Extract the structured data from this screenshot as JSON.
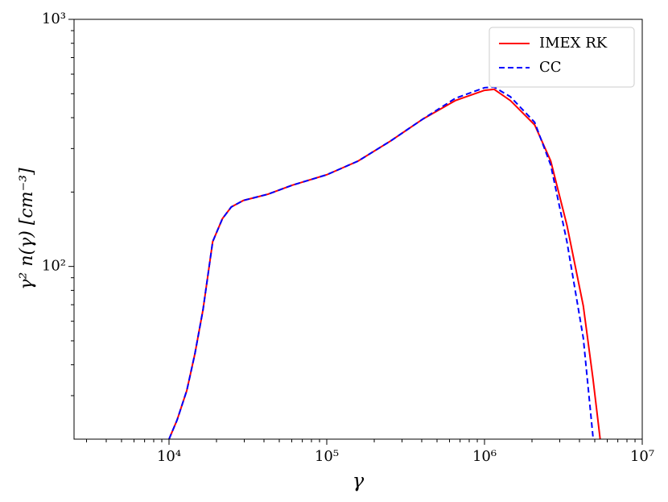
{
  "chart_data": {
    "type": "line",
    "xlabel": "γ",
    "ylabel": "γ² n(γ) [cm⁻³]",
    "xscale": "log",
    "yscale": "log",
    "xlim": [
      2500,
      10000000
    ],
    "ylim": [
      20,
      1000
    ],
    "xticks": [
      {
        "value": 10000,
        "label": "10⁴"
      },
      {
        "value": 100000,
        "label": "10⁵"
      },
      {
        "value": 1000000,
        "label": "10⁶"
      },
      {
        "value": 10000000,
        "label": "10⁷"
      }
    ],
    "yticks": [
      {
        "value": 100,
        "label": "10²"
      },
      {
        "value": 1000,
        "label": "10³"
      }
    ],
    "legend": "upper right",
    "x": [
      10000,
      11250,
      12970,
      14580,
      16420,
      18920,
      21800,
      24800,
      29650,
      42300,
      60200,
      100000,
      158000,
      254000,
      407000,
      653000,
      1000000,
      1150000,
      1460000,
      2080000,
      2630000,
      3330000,
      4230000,
      4870000,
      5410000
    ],
    "series": [
      {
        "name": "IMEX RK",
        "color": "#ff0000",
        "linestyle": "solid",
        "values": [
          20,
          23.9,
          31.5,
          44.2,
          66.7,
          126,
          156,
          174,
          185,
          196,
          213,
          235,
          267,
          322,
          395,
          469,
          516,
          521,
          469,
          374,
          267,
          147,
          69.2,
          35.2,
          20
        ]
      },
      {
        "name": "CC",
        "color": "#0000ff",
        "linestyle": "dashed",
        "values": [
          20,
          23.9,
          31.5,
          44.2,
          66.7,
          126,
          156,
          174,
          185,
          196,
          213,
          235,
          267,
          322,
          395,
          479,
          529,
          532,
          486,
          383,
          257,
          126,
          51.3,
          20.5,
          null
        ]
      }
    ]
  }
}
